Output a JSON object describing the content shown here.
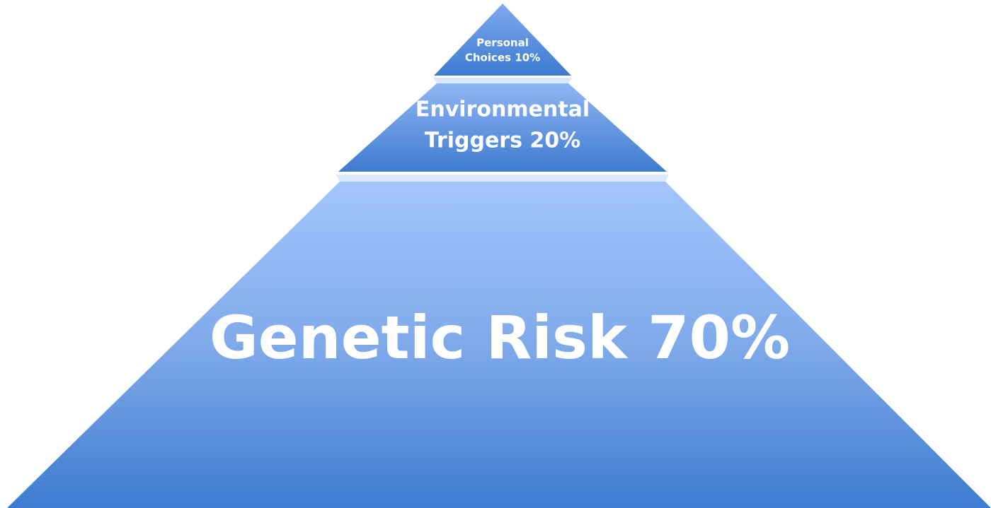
{
  "layers": [
    {
      "lines": [
        "Personal",
        "Choices 10%"
      ]
    },
    {
      "lines": [
        "Environmental",
        "Triggers 20%"
      ]
    },
    {
      "lines": [
        "Genetic Risk 70%"
      ]
    }
  ]
}
